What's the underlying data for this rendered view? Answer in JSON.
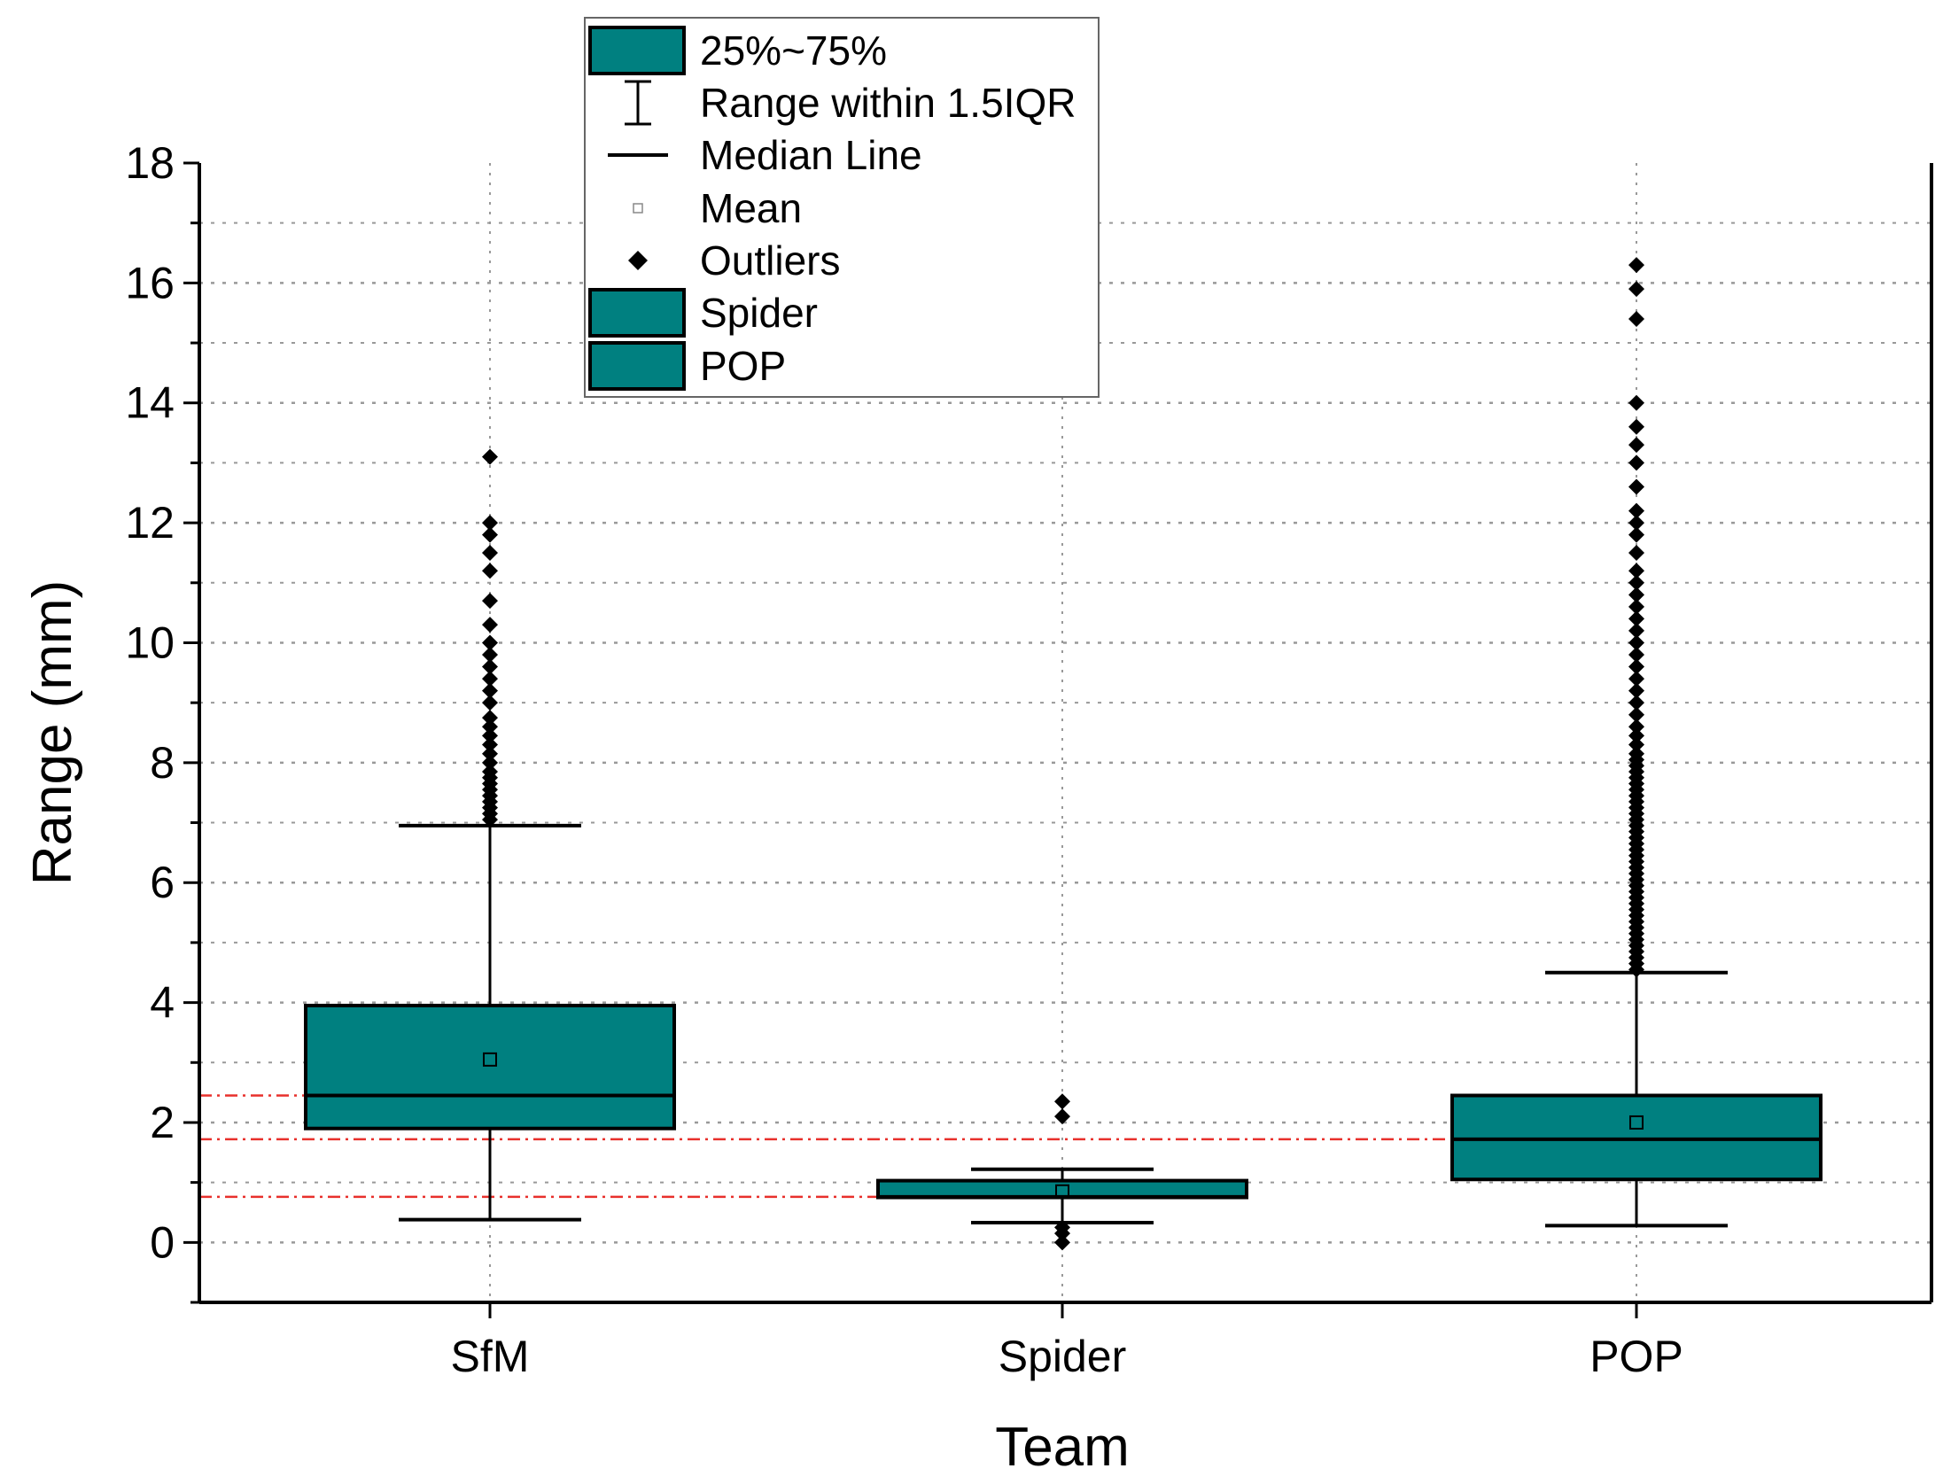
{
  "chart_data": {
    "type": "box",
    "title": "",
    "xlabel": "Team",
    "ylabel": "Range (mm)",
    "ylim": [
      -1,
      18
    ],
    "yticks": [
      0,
      2,
      4,
      6,
      8,
      10,
      12,
      14,
      16,
      18
    ],
    "grid": true,
    "categories": [
      "SfM",
      "Spider",
      "POP"
    ],
    "colors": {
      "box_fill": "#008080",
      "reference_line": "#e8302c",
      "grid": "#999999"
    },
    "boxes": [
      {
        "name": "SfM",
        "q1": 1.9,
        "median": 2.45,
        "q3": 3.95,
        "mean": 3.05,
        "whisker_low": 0.38,
        "whisker_high": 6.95,
        "outliers": [
          7.05,
          7.15,
          7.25,
          7.35,
          7.45,
          7.55,
          7.65,
          7.75,
          7.85,
          8.0,
          8.15,
          8.3,
          8.45,
          8.6,
          8.75,
          9.0,
          9.2,
          9.4,
          9.6,
          9.8,
          10.0,
          10.3,
          10.7,
          11.2,
          11.5,
          11.8,
          12.0,
          13.1
        ]
      },
      {
        "name": "Spider",
        "q1": 0.75,
        "median": 0.76,
        "q3": 1.03,
        "mean": 0.85,
        "whisker_low": 0.33,
        "whisker_high": 1.22,
        "outliers": [
          0.0,
          0.15,
          0.25,
          2.1,
          2.35
        ]
      },
      {
        "name": "POP",
        "q1": 1.05,
        "median": 1.72,
        "q3": 2.45,
        "mean": 2.0,
        "whisker_low": 0.28,
        "whisker_high": 4.5,
        "outliers": [
          4.55,
          4.65,
          4.75,
          4.85,
          4.95,
          5.05,
          5.15,
          5.25,
          5.35,
          5.45,
          5.55,
          5.65,
          5.75,
          5.85,
          5.95,
          6.05,
          6.15,
          6.25,
          6.35,
          6.45,
          6.55,
          6.65,
          6.75,
          6.85,
          6.95,
          7.05,
          7.15,
          7.25,
          7.35,
          7.45,
          7.55,
          7.65,
          7.75,
          7.85,
          7.95,
          8.05,
          8.15,
          8.3,
          8.45,
          8.6,
          8.8,
          9.0,
          9.2,
          9.4,
          9.6,
          9.8,
          10.0,
          10.2,
          10.4,
          10.6,
          10.8,
          11.0,
          11.2,
          11.5,
          11.8,
          12.0,
          12.2,
          12.6,
          13.0,
          13.3,
          13.6,
          14.0,
          15.4,
          15.9,
          16.3
        ]
      }
    ],
    "reference_lines": [
      {
        "y": 2.45,
        "extends_to": "SfM"
      },
      {
        "y": 1.72,
        "extends_to": "POP"
      },
      {
        "y": 0.76,
        "extends_to": "Spider"
      }
    ],
    "legend": {
      "position": "top-center",
      "items": [
        {
          "label": "25%~75%",
          "symbol": "box"
        },
        {
          "label": "Range within 1.5IQR",
          "symbol": "whisker"
        },
        {
          "label": "Median Line",
          "symbol": "line"
        },
        {
          "label": "Mean",
          "symbol": "small-square"
        },
        {
          "label": "Outliers",
          "symbol": "diamond"
        },
        {
          "label": "Spider",
          "symbol": "box"
        },
        {
          "label": "POP",
          "symbol": "box"
        }
      ]
    }
  }
}
